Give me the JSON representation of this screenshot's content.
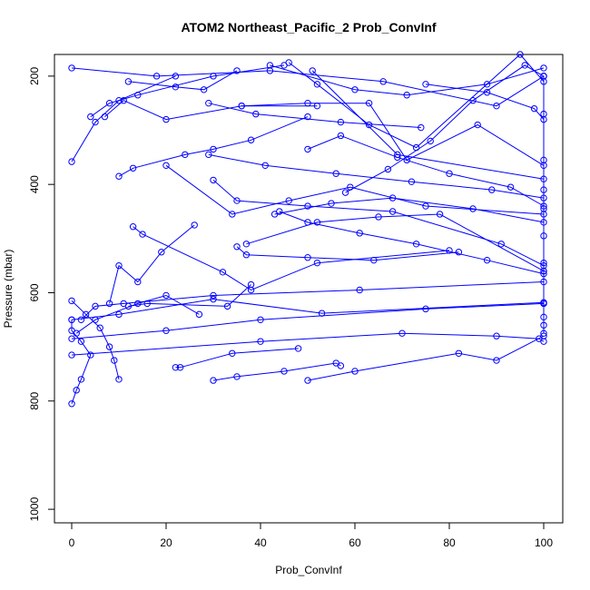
{
  "chart_data": {
    "type": "line",
    "title": "ATOM2 Northeast_Pacific_2 Prob_ConvInf",
    "xlabel": "Prob_ConvInf",
    "ylabel": "Pressure (mbar)",
    "xlim": [
      0,
      100
    ],
    "ylim": [
      1025,
      160
    ],
    "y_inverted": true,
    "grid": false,
    "marker": "open-circle",
    "series_color": "#0000ff",
    "x_ticks": [
      0,
      20,
      40,
      60,
      80,
      100
    ],
    "y_ticks": [
      200,
      400,
      600,
      800,
      1000
    ],
    "series": [
      {
        "x": [
          0,
          1,
          2,
          4,
          2,
          0,
          0
        ],
        "y": [
          805,
          780,
          760,
          715,
          690,
          670,
          650
        ]
      },
      {
        "x": [
          10,
          9,
          8,
          6,
          3,
          0
        ],
        "y": [
          760,
          725,
          700,
          665,
          640,
          615
        ]
      },
      {
        "x": [
          22,
          23,
          34,
          48
        ],
        "y": [
          738,
          738,
          712,
          703
        ]
      },
      {
        "x": [
          30,
          35,
          45,
          56,
          57
        ],
        "y": [
          762,
          755,
          745,
          730,
          735
        ]
      },
      {
        "x": [
          50,
          60,
          82,
          90,
          100
        ],
        "y": [
          762,
          745,
          712,
          725,
          680
        ]
      },
      {
        "x": [
          100,
          99,
          90,
          70,
          40,
          0
        ],
        "y": [
          690,
          685,
          680,
          675,
          690,
          715
        ]
      },
      {
        "x": [
          1,
          5,
          14,
          20,
          27
        ],
        "y": [
          675,
          650,
          620,
          605,
          640
        ]
      },
      {
        "x": [
          0,
          10,
          30,
          53,
          100
        ],
        "y": [
          650,
          640,
          612,
          638,
          618
        ]
      },
      {
        "x": [
          2,
          5,
          11,
          30,
          61,
          100
        ],
        "y": [
          650,
          625,
          620,
          605,
          595,
          580
        ]
      },
      {
        "x": [
          0,
          20,
          40,
          75,
          100
        ],
        "y": [
          685,
          670,
          650,
          630,
          620
        ]
      },
      {
        "x": [
          12,
          16,
          33,
          38
        ],
        "y": [
          625,
          620,
          625,
          585
        ]
      },
      {
        "x": [
          8,
          10,
          14,
          19,
          26
        ],
        "y": [
          620,
          550,
          580,
          525,
          475
        ]
      },
      {
        "x": [
          13,
          15,
          32,
          38,
          52,
          80
        ],
        "y": [
          478,
          492,
          562,
          595,
          545,
          522
        ]
      },
      {
        "x": [
          35,
          37,
          50,
          64,
          82
        ],
        "y": [
          515,
          530,
          535,
          540,
          525
        ]
      },
      {
        "x": [
          37,
          52,
          65,
          78,
          100
        ],
        "y": [
          510,
          470,
          460,
          455,
          560
        ]
      },
      {
        "x": [
          44,
          50,
          61,
          73,
          88,
          100
        ],
        "y": [
          450,
          470,
          490,
          510,
          540,
          565
        ]
      },
      {
        "x": [
          30,
          35,
          50,
          68,
          91,
          100
        ],
        "y": [
          392,
          430,
          440,
          450,
          510,
          550
        ]
      },
      {
        "x": [
          43,
          55,
          68,
          85,
          100
        ],
        "y": [
          455,
          435,
          425,
          445,
          470
        ]
      },
      {
        "x": [
          20,
          34,
          46,
          59,
          75,
          100
        ],
        "y": [
          365,
          455,
          430,
          405,
          440,
          455
        ]
      },
      {
        "x": [
          29,
          41,
          56,
          72,
          89,
          100
        ],
        "y": [
          345,
          365,
          380,
          395,
          410,
          425
        ]
      },
      {
        "x": [
          50,
          57,
          69,
          80,
          93,
          100
        ],
        "y": [
          335,
          310,
          350,
          380,
          405,
          440
        ]
      },
      {
        "x": [
          10,
          13,
          24,
          30,
          38,
          50
        ],
        "y": [
          385,
          370,
          345,
          335,
          318,
          275
        ]
      },
      {
        "x": [
          0,
          5,
          10,
          22
        ],
        "y": [
          358,
          285,
          245,
          200
        ]
      },
      {
        "x": [
          4,
          8,
          14,
          30,
          45
        ],
        "y": [
          275,
          250,
          235,
          200,
          180
        ]
      },
      {
        "x": [
          7,
          11,
          20,
          36,
          52
        ],
        "y": [
          275,
          245,
          280,
          255,
          255
        ]
      },
      {
        "x": [
          29,
          39,
          57,
          74
        ],
        "y": [
          250,
          270,
          285,
          295
        ]
      },
      {
        "x": [
          36,
          50,
          63,
          71,
          86,
          100
        ],
        "y": [
          255,
          250,
          250,
          355,
          290,
          365
        ]
      },
      {
        "x": [
          58,
          67,
          76,
          85,
          96,
          100
        ],
        "y": [
          415,
          372,
          320,
          245,
          180,
          200
        ]
      },
      {
        "x": [
          46,
          52,
          63,
          73,
          95,
          100
        ],
        "y": [
          175,
          215,
          290,
          332,
          160,
          210
        ]
      },
      {
        "x": [
          0,
          18,
          42,
          66,
          90,
          100
        ],
        "y": [
          185,
          200,
          190,
          210,
          255,
          200
        ]
      },
      {
        "x": [
          42,
          60,
          71,
          88,
          100
        ],
        "y": [
          180,
          225,
          235,
          215,
          185
        ]
      },
      {
        "x": [
          51,
          69,
          100
        ],
        "y": [
          190,
          345,
          390
        ]
      },
      {
        "x": [
          75,
          88,
          98,
          100
        ],
        "y": [
          215,
          230,
          260,
          280
        ]
      },
      {
        "x": [
          12,
          22,
          28,
          35
        ],
        "y": [
          210,
          220,
          225,
          190
        ]
      },
      {
        "x": [
          100,
          100,
          100,
          100,
          100,
          100,
          100,
          100,
          100,
          100,
          100,
          100
        ],
        "y": [
          200,
          270,
          355,
          410,
          445,
          495,
          545,
          560,
          620,
          645,
          660,
          675
        ]
      }
    ]
  }
}
